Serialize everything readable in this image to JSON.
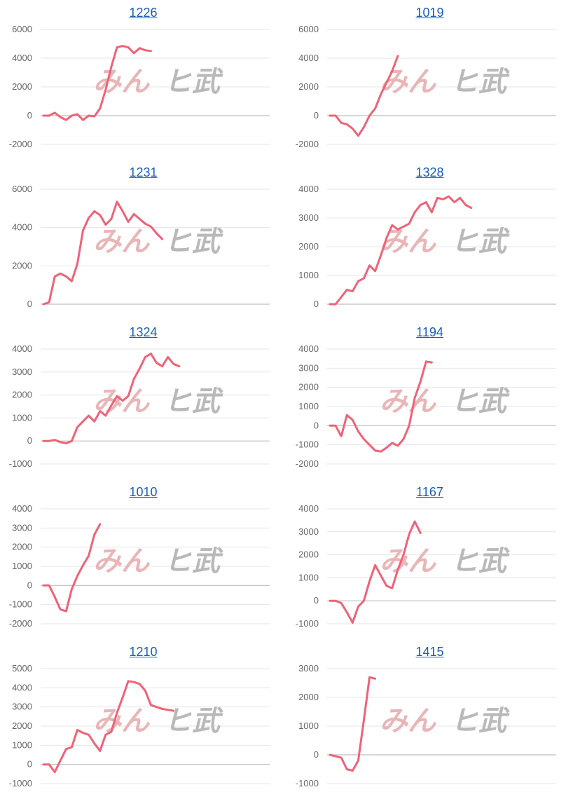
{
  "watermark": {
    "left": "みん",
    "right": "ヒ武"
  },
  "colors": {
    "line": "#f06277",
    "grid": "#e4e4e4",
    "axis": "#bfbfbf",
    "title": "#1a5fb4"
  },
  "chart_data": [
    {
      "type": "line",
      "title": "1226",
      "yticks": [
        6000,
        4000,
        2000,
        0,
        -2000
      ],
      "ylim": [
        -2000,
        6000
      ],
      "xlim": [
        0,
        40
      ],
      "x": [
        0,
        1,
        2,
        3,
        4,
        5,
        6,
        7,
        8,
        9,
        10,
        11,
        12,
        13,
        14,
        15,
        16,
        17,
        18,
        19,
        20
      ],
      "values": [
        0,
        0,
        200,
        -100,
        -300,
        0,
        100,
        -300,
        0,
        -50,
        500,
        1800,
        3400,
        4750,
        4850,
        4750,
        4350,
        4700,
        4550,
        4500,
        null
      ]
    },
    {
      "type": "line",
      "title": "1019",
      "yticks": [
        6000,
        4000,
        2000,
        0,
        -2000
      ],
      "ylim": [
        -2000,
        6000
      ],
      "xlim": [
        0,
        40
      ],
      "x": [
        0,
        1,
        2,
        3,
        4,
        5,
        6,
        7,
        8,
        9,
        10,
        11,
        12
      ],
      "values": [
        0,
        0,
        -500,
        -600,
        -900,
        -1400,
        -800,
        0,
        500,
        1500,
        2300,
        3100,
        4150
      ]
    },
    {
      "type": "line",
      "title": "1231",
      "yticks": [
        6000,
        4000,
        2000,
        0
      ],
      "ylim": [
        0,
        6000
      ],
      "xlim": [
        0,
        40
      ],
      "x": [
        0,
        1,
        2,
        3,
        4,
        5,
        6,
        7,
        8,
        9,
        10,
        11,
        12,
        13,
        14,
        15,
        16,
        17,
        18,
        19,
        20,
        21
      ],
      "values": [
        0,
        100,
        1450,
        1600,
        1450,
        1200,
        2100,
        3850,
        4500,
        4850,
        4650,
        4150,
        4450,
        5350,
        4850,
        4300,
        4700,
        4450,
        4200,
        4050,
        3700,
        3400
      ]
    },
    {
      "type": "line",
      "title": "1328",
      "yticks": [
        4000,
        3000,
        2000,
        1000,
        0
      ],
      "ylim": [
        0,
        4000
      ],
      "xlim": [
        0,
        40
      ],
      "x": [
        0,
        1,
        2,
        3,
        4,
        5,
        6,
        7,
        8,
        9,
        10,
        11,
        12,
        13,
        14,
        15,
        16,
        17,
        18,
        19,
        20,
        21,
        22,
        23,
        24,
        25,
        26,
        27,
        28,
        29,
        30,
        31
      ],
      "values": [
        0,
        0,
        250,
        500,
        450,
        800,
        900,
        1350,
        1150,
        1700,
        2300,
        2750,
        2600,
        2700,
        2800,
        3200,
        3450,
        3550,
        3200,
        3700,
        3650,
        3750,
        3550,
        3700,
        3450,
        3350,
        null,
        null,
        null,
        null,
        null,
        null
      ]
    },
    {
      "type": "line",
      "title": "1324",
      "yticks": [
        4000,
        3000,
        2000,
        1000,
        0,
        -1000
      ],
      "ylim": [
        -1000,
        4000
      ],
      "xlim": [
        0,
        40
      ],
      "x": [
        0,
        1,
        2,
        3,
        4,
        5,
        6,
        7,
        8,
        9,
        10,
        11,
        12,
        13,
        14,
        15,
        16,
        17,
        18,
        19,
        20,
        21,
        22,
        23,
        24,
        25,
        26,
        27,
        28,
        29,
        30
      ],
      "values": [
        0,
        0,
        50,
        -50,
        -100,
        0,
        600,
        850,
        1100,
        850,
        1300,
        1100,
        1550,
        1950,
        1750,
        1950,
        2700,
        3150,
        3650,
        3800,
        3400,
        3250,
        3650,
        3350,
        3250,
        null,
        null,
        null,
        null,
        null,
        null
      ]
    },
    {
      "type": "line",
      "title": "1194",
      "yticks": [
        4000,
        3000,
        2000,
        1000,
        0,
        -1000,
        -2000
      ],
      "ylim": [
        -2000,
        4000
      ],
      "xlim": [
        0,
        40
      ],
      "x": [
        0,
        1,
        2,
        3,
        4,
        5,
        6,
        7,
        8,
        9,
        10,
        11,
        12,
        13,
        14,
        15,
        16,
        17,
        18
      ],
      "values": [
        0,
        0,
        -550,
        550,
        300,
        -300,
        -700,
        -1000,
        -1300,
        -1350,
        -1150,
        -900,
        -1050,
        -700,
        0,
        1450,
        2300,
        3350,
        3300
      ]
    },
    {
      "type": "line",
      "title": "1010",
      "yticks": [
        4000,
        3000,
        2000,
        1000,
        0,
        -1000,
        -2000
      ],
      "ylim": [
        -2000,
        4000
      ],
      "xlim": [
        0,
        40
      ],
      "x": [
        0,
        1,
        2,
        3,
        4,
        5,
        6,
        7,
        8,
        9,
        10
      ],
      "values": [
        0,
        0,
        -600,
        -1250,
        -1350,
        -200,
        500,
        1050,
        1550,
        2650,
        3200
      ]
    },
    {
      "type": "line",
      "title": "1167",
      "yticks": [
        4000,
        3000,
        2000,
        1000,
        0,
        -1000
      ],
      "ylim": [
        -1000,
        4000
      ],
      "xlim": [
        0,
        40
      ],
      "x": [
        0,
        1,
        2,
        3,
        4,
        5,
        6,
        7,
        8,
        9,
        10,
        11,
        12,
        13,
        14,
        15,
        16,
        17,
        18,
        19
      ],
      "values": [
        0,
        0,
        -100,
        -500,
        -950,
        -250,
        0,
        850,
        1550,
        1100,
        650,
        550,
        1350,
        2000,
        2900,
        3450,
        2950,
        null,
        null,
        null
      ]
    },
    {
      "type": "line",
      "title": "1210",
      "yticks": [
        5000,
        4000,
        3000,
        2000,
        1000,
        0,
        -1000
      ],
      "ylim": [
        -1000,
        5000
      ],
      "xlim": [
        0,
        40
      ],
      "x": [
        0,
        1,
        2,
        3,
        4,
        5,
        6,
        7,
        8,
        9,
        10,
        11,
        12,
        13,
        14,
        15,
        16,
        17,
        18,
        19,
        20,
        21,
        22,
        23
      ],
      "values": [
        0,
        0,
        -400,
        200,
        800,
        900,
        1800,
        1650,
        1550,
        1100,
        700,
        1550,
        1700,
        2700,
        3500,
        4350,
        4300,
        4200,
        3850,
        3100,
        3000,
        2900,
        2850,
        2800
      ]
    },
    {
      "type": "line",
      "title": "1415",
      "yticks": [
        3000,
        2000,
        1000,
        0,
        -1000
      ],
      "ylim": [
        -1000,
        3000
      ],
      "xlim": [
        0,
        40
      ],
      "x": [
        0,
        1,
        2,
        3,
        4,
        5,
        6,
        7,
        8,
        9
      ],
      "values": [
        0,
        -50,
        -100,
        -500,
        -550,
        -200,
        1200,
        2700,
        2650,
        null
      ]
    }
  ]
}
